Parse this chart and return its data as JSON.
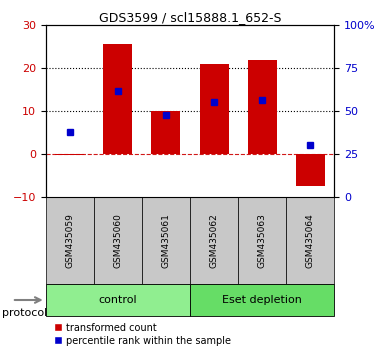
{
  "title": "GDS3599 / scl15888.1_652-S",
  "samples": [
    "GSM435059",
    "GSM435060",
    "GSM435061",
    "GSM435062",
    "GSM435063",
    "GSM435064"
  ],
  "red_bar_heights": [
    -0.3,
    25.5,
    10.0,
    20.8,
    21.8,
    -7.5
  ],
  "blue_square_values": [
    5.0,
    14.5,
    9.0,
    12.0,
    12.5,
    2.0
  ],
  "ylim_left": [
    -10,
    30
  ],
  "ylim_right": [
    0,
    100
  ],
  "yticks_left": [
    -10,
    0,
    10,
    20,
    30
  ],
  "yticks_right": [
    0,
    25,
    50,
    75,
    100
  ],
  "ytick_labels_right": [
    "0",
    "25",
    "50",
    "75",
    "100%"
  ],
  "dotted_lines": [
    10,
    20
  ],
  "dashed_line_y": 0,
  "control_label": "control",
  "eset_label": "Eset depletion",
  "protocol_label": "protocol",
  "legend_red": "transformed count",
  "legend_blue": "percentile rank within the sample",
  "red_color": "#CC0000",
  "blue_color": "#0000CC",
  "bar_width": 0.6,
  "ctrl_color": "#90EE90",
  "eset_color": "#66DD66",
  "sample_bg": "#C8C8C8",
  "n_ctrl": 3,
  "n_eset": 3
}
